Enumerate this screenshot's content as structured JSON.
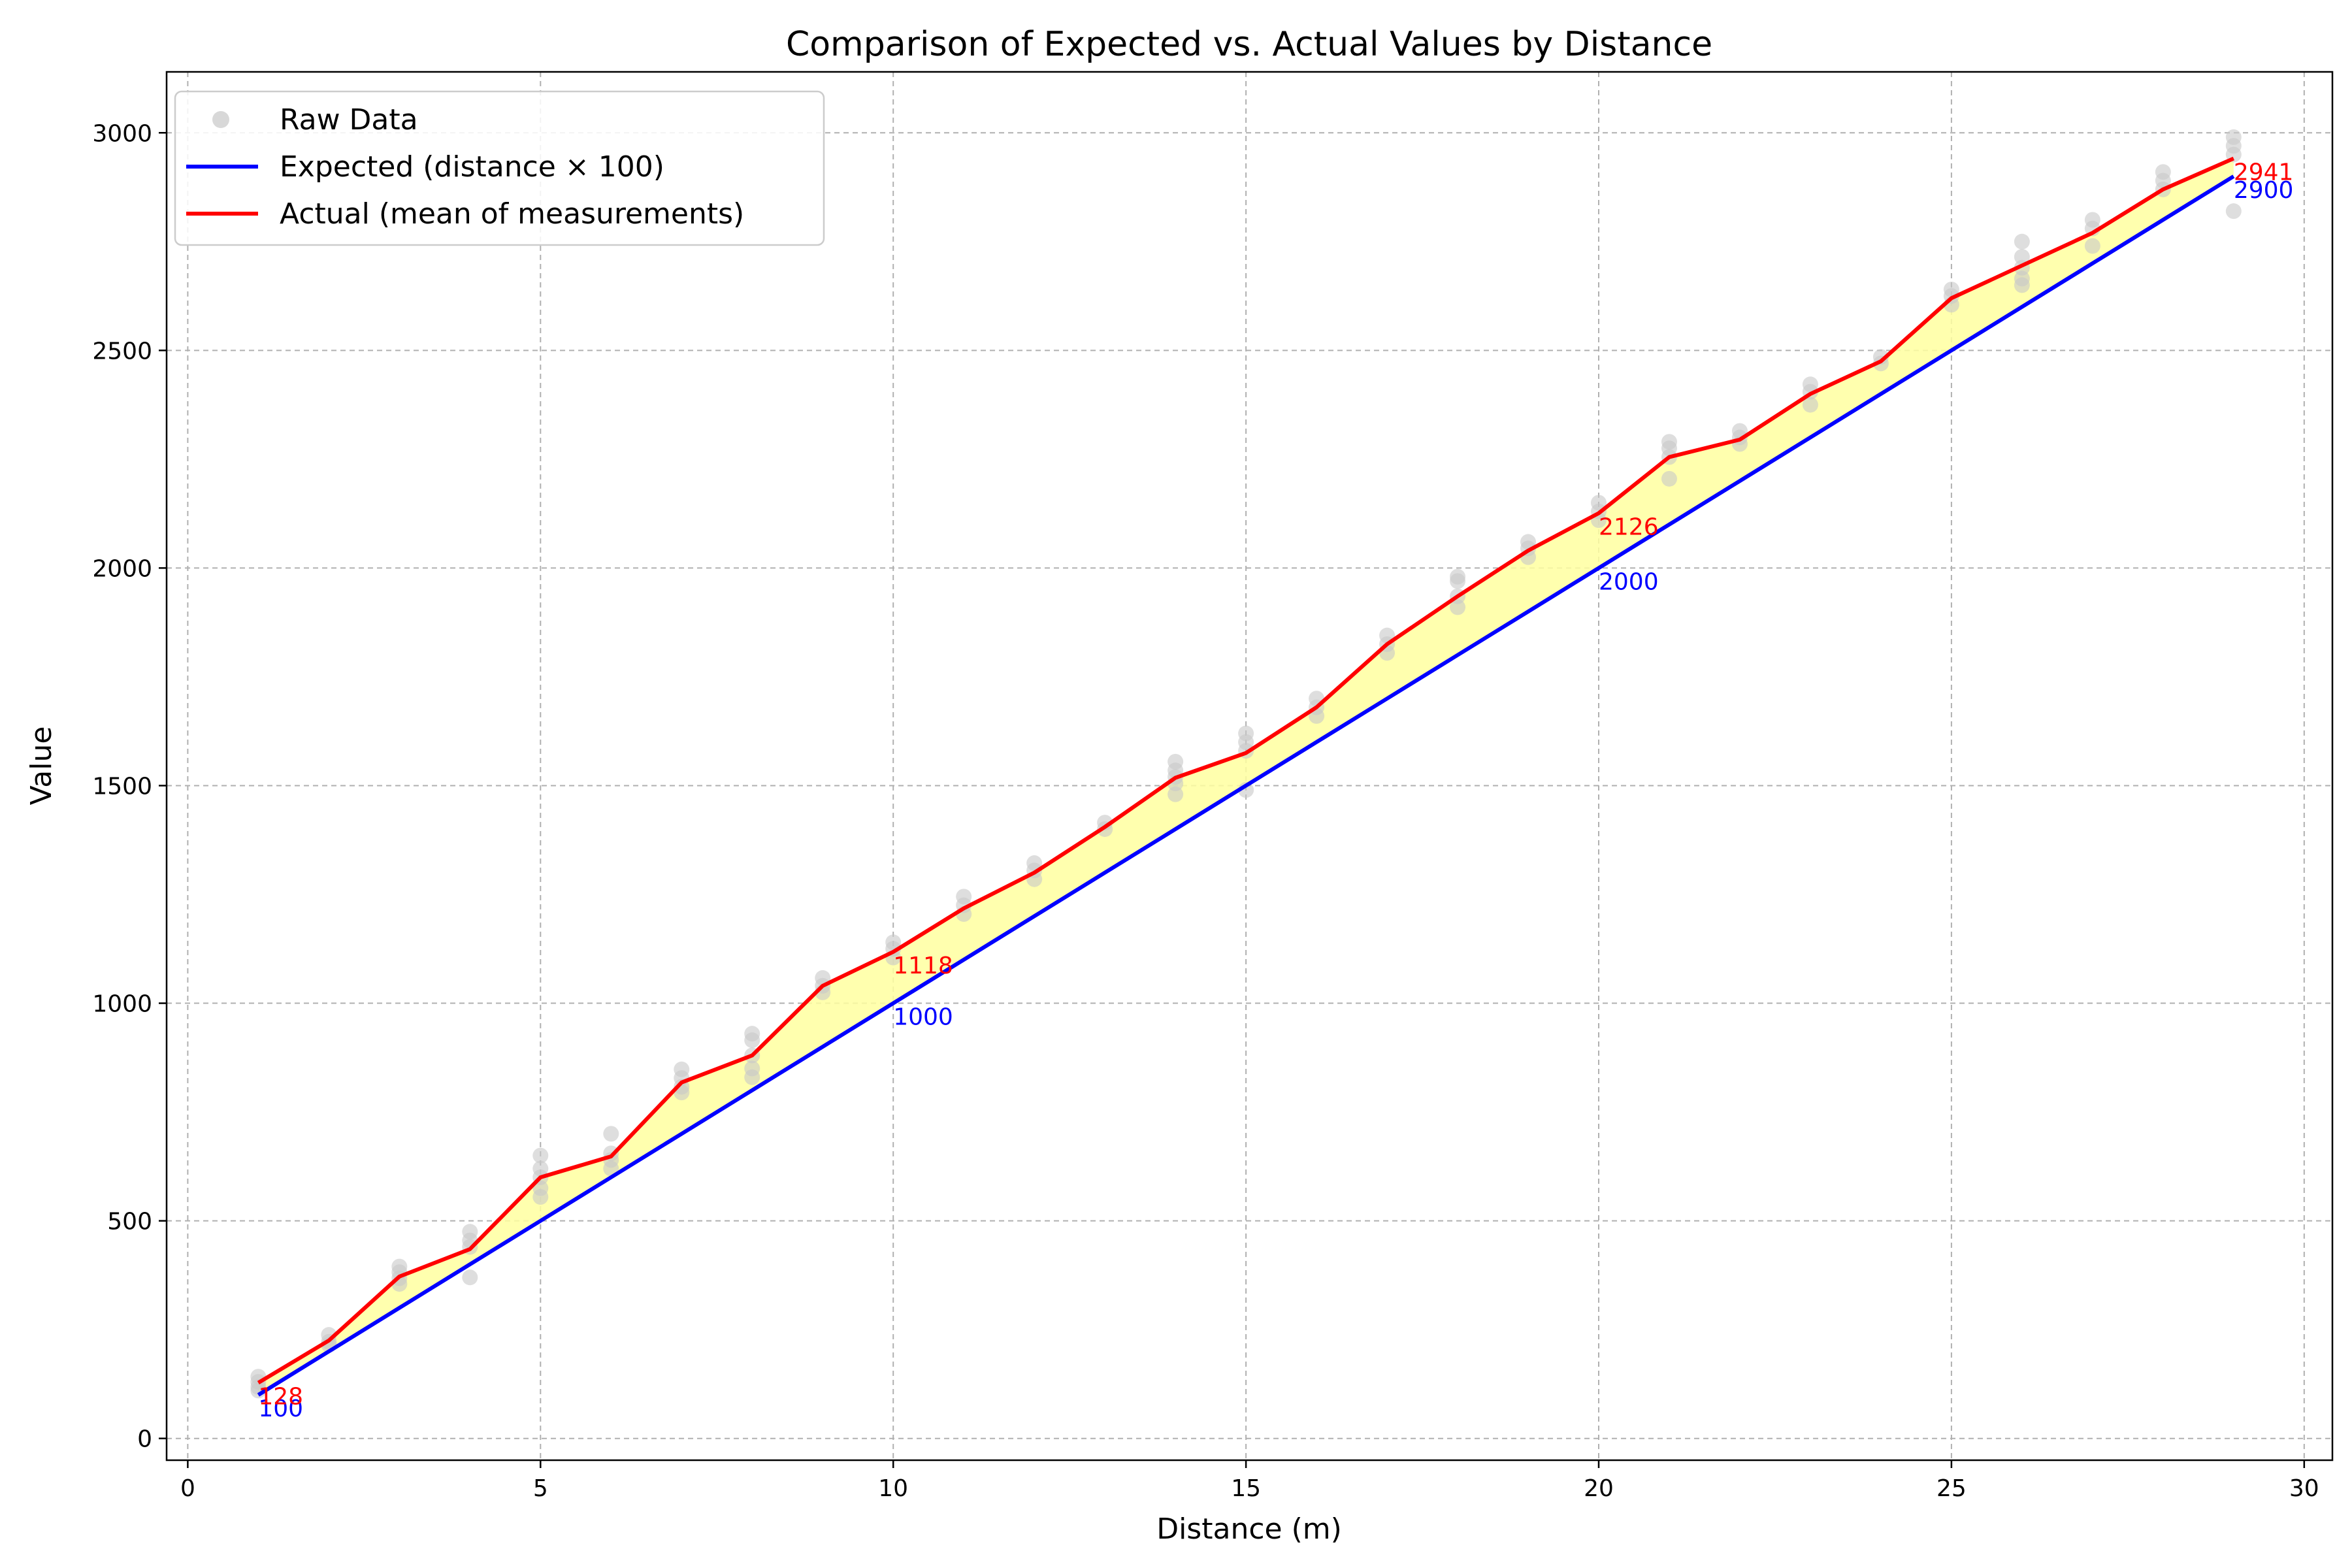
{
  "chart_data": {
    "type": "line",
    "title": "Comparison of Expected vs. Actual Values by Distance",
    "xlabel": "Distance (m)",
    "ylabel": "Value",
    "xlim": [
      -0.3,
      30.4
    ],
    "ylim": [
      -50,
      3140
    ],
    "xticks": [
      0,
      5,
      10,
      15,
      20,
      25,
      30
    ],
    "yticks": [
      0,
      500,
      1000,
      1500,
      2000,
      2500,
      3000
    ],
    "grid": true,
    "legend_position": "top-left",
    "fill_between": {
      "between": [
        "Expected (distance × 100)",
        "Actual (mean of measurements)"
      ],
      "color": "#ffffa0"
    },
    "x": [
      1,
      2,
      3,
      4,
      5,
      6,
      7,
      8,
      9,
      10,
      11,
      12,
      13,
      14,
      15,
      16,
      17,
      18,
      19,
      20,
      21,
      22,
      23,
      24,
      25,
      26,
      27,
      28,
      29
    ],
    "series": [
      {
        "name": "Expected (distance × 100)",
        "color": "#0000ff",
        "values": [
          100,
          200,
          300,
          400,
          500,
          600,
          700,
          800,
          900,
          1000,
          1100,
          1200,
          1300,
          1400,
          1500,
          1600,
          1700,
          1800,
          1900,
          2000,
          2100,
          2200,
          2300,
          2400,
          2500,
          2600,
          2700,
          2800,
          2900
        ]
      },
      {
        "name": "Actual (mean of measurements)",
        "color": "#ff0000",
        "values": [
          128,
          225,
          372,
          435,
          600,
          648,
          818,
          880,
          1040,
          1118,
          1218,
          1300,
          1405,
          1518,
          1575,
          1680,
          1825,
          1935,
          2040,
          2126,
          2255,
          2295,
          2400,
          2475,
          2620,
          2695,
          2770,
          2870,
          2941
        ]
      }
    ],
    "scatter": {
      "name": "Raw Data",
      "color": "#c8c8c8",
      "points": [
        [
          1,
          142
        ],
        [
          1,
          130
        ],
        [
          1,
          118
        ],
        [
          1,
          110
        ],
        [
          2,
          238
        ],
        [
          2,
          222
        ],
        [
          2,
          215
        ],
        [
          3,
          395
        ],
        [
          3,
          382
        ],
        [
          3,
          368
        ],
        [
          3,
          355
        ],
        [
          4,
          475
        ],
        [
          4,
          455
        ],
        [
          4,
          440
        ],
        [
          4,
          370
        ],
        [
          5,
          650
        ],
        [
          5,
          620
        ],
        [
          5,
          600
        ],
        [
          5,
          575
        ],
        [
          5,
          555
        ],
        [
          6,
          700
        ],
        [
          6,
          655
        ],
        [
          6,
          640
        ],
        [
          6,
          620
        ],
        [
          7,
          848
        ],
        [
          7,
          828
        ],
        [
          7,
          808
        ],
        [
          7,
          795
        ],
        [
          8,
          930
        ],
        [
          8,
          915
        ],
        [
          8,
          880
        ],
        [
          8,
          850
        ],
        [
          8,
          830
        ],
        [
          9,
          1058
        ],
        [
          9,
          1040
        ],
        [
          9,
          1025
        ],
        [
          10,
          1140
        ],
        [
          10,
          1125
        ],
        [
          10,
          1105
        ],
        [
          11,
          1245
        ],
        [
          11,
          1225
        ],
        [
          11,
          1205
        ],
        [
          12,
          1322
        ],
        [
          12,
          1305
        ],
        [
          12,
          1285
        ],
        [
          13,
          1415
        ],
        [
          13,
          1400
        ],
        [
          14,
          1555
        ],
        [
          14,
          1535
        ],
        [
          14,
          1520
        ],
        [
          14,
          1505
        ],
        [
          14,
          1480
        ],
        [
          15,
          1620
        ],
        [
          15,
          1600
        ],
        [
          15,
          1580
        ],
        [
          15,
          1490
        ],
        [
          16,
          1700
        ],
        [
          16,
          1680
        ],
        [
          16,
          1660
        ],
        [
          17,
          1845
        ],
        [
          17,
          1825
        ],
        [
          17,
          1805
        ],
        [
          18,
          1980
        ],
        [
          18,
          1970
        ],
        [
          18,
          1935
        ],
        [
          18,
          1910
        ],
        [
          19,
          2060
        ],
        [
          19,
          2045
        ],
        [
          19,
          2025
        ],
        [
          20,
          2150
        ],
        [
          20,
          2130
        ],
        [
          20,
          2110
        ],
        [
          21,
          2290
        ],
        [
          21,
          2275
        ],
        [
          21,
          2255
        ],
        [
          21,
          2205
        ],
        [
          22,
          2315
        ],
        [
          22,
          2300
        ],
        [
          22,
          2285
        ],
        [
          23,
          2422
        ],
        [
          23,
          2405
        ],
        [
          23,
          2375
        ],
        [
          24,
          2485
        ],
        [
          24,
          2470
        ],
        [
          25,
          2640
        ],
        [
          25,
          2625
        ],
        [
          25,
          2605
        ],
        [
          26,
          2750
        ],
        [
          26,
          2715
        ],
        [
          26,
          2690
        ],
        [
          26,
          2665
        ],
        [
          26,
          2650
        ],
        [
          27,
          2800
        ],
        [
          27,
          2780
        ],
        [
          27,
          2740
        ],
        [
          28,
          2910
        ],
        [
          28,
          2890
        ],
        [
          28,
          2870
        ],
        [
          29,
          2990
        ],
        [
          29,
          2970
        ],
        [
          29,
          2950
        ],
        [
          29,
          2820
        ]
      ]
    },
    "annotations": [
      {
        "x": 1,
        "y": 100,
        "text": "100",
        "color": "#0000ff"
      },
      {
        "x": 1,
        "y": 128,
        "text": "128",
        "color": "#ff0000"
      },
      {
        "x": 10,
        "y": 1000,
        "text": "1000",
        "color": "#0000ff"
      },
      {
        "x": 10,
        "y": 1118,
        "text": "1118",
        "color": "#ff0000"
      },
      {
        "x": 20,
        "y": 2000,
        "text": "2000",
        "color": "#0000ff"
      },
      {
        "x": 20,
        "y": 2126,
        "text": "2126",
        "color": "#ff0000"
      },
      {
        "x": 29,
        "y": 2900,
        "text": "2900",
        "color": "#0000ff"
      },
      {
        "x": 29,
        "y": 2941,
        "text": "2941",
        "color": "#ff0000"
      }
    ]
  }
}
